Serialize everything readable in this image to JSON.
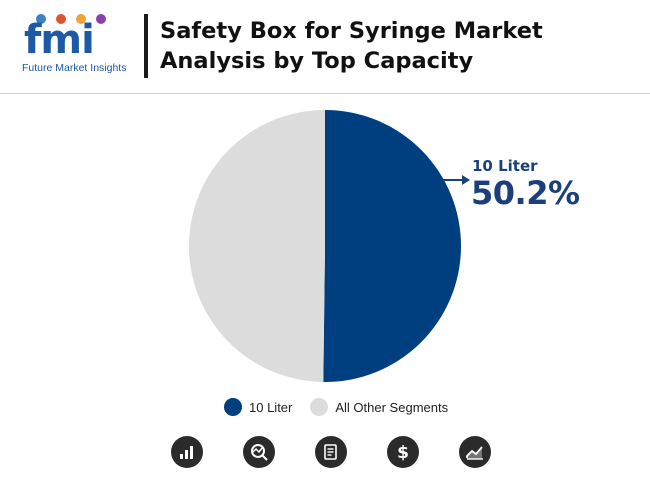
{
  "header": {
    "logo_word": "fmi",
    "logo_tagline": "Future Market Insights",
    "title": "Safety Box for Syringe Market Analysis by Top Capacity"
  },
  "colors": {
    "highlight": "#003f7f",
    "other": "#dcdcdc",
    "callout": "#1a3f7a"
  },
  "chart_data": {
    "type": "pie",
    "title": "Safety Box for Syringe Market Analysis by Top Capacity",
    "slices": [
      {
        "label": "10 Liter",
        "value": 50.2,
        "color": "#003f7f"
      },
      {
        "label": "All Other Segments",
        "value": 49.8,
        "color": "#dcdcdc"
      }
    ],
    "callout": {
      "label": "10 Liter",
      "value_text": "50.2%"
    },
    "legend_position": "bottom"
  },
  "footer_icons": [
    "bar-chart-icon",
    "magnifier-chart-icon",
    "report-icon",
    "dollar-icon",
    "trend-chart-icon"
  ]
}
